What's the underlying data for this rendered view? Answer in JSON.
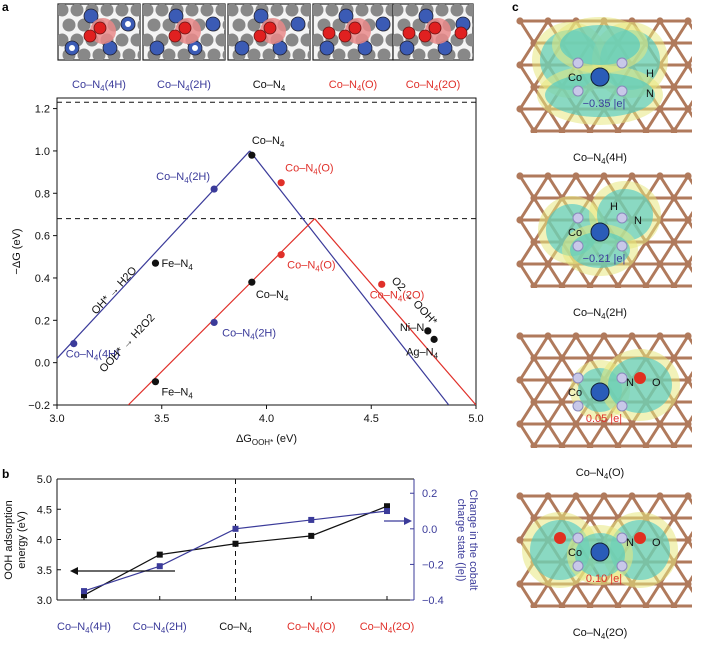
{
  "panel_labels": {
    "a": "a",
    "b": "b",
    "c": "c"
  },
  "colors": {
    "blue": "#3b3b9a",
    "red": "#e0302a",
    "black": "#111111",
    "atom_blue": "#3b5bb5",
    "atom_red": "#e02020",
    "carbon": "#b07a5c",
    "cyan": "#44c8c8",
    "yellow": "#e8e880"
  },
  "structures": [
    {
      "label": "Co–N",
      "sub": "4",
      "suffix": "(4H)",
      "color": "#3b3b9a"
    },
    {
      "label": "Co–N",
      "sub": "4",
      "suffix": "(2H)",
      "color": "#3b3b9a"
    },
    {
      "label": "Co–N",
      "sub": "4",
      "suffix": "",
      "color": "#111111"
    },
    {
      "label": "Co–N",
      "sub": "4",
      "suffix": "(O)",
      "color": "#e0302a"
    },
    {
      "label": "Co–N",
      "sub": "4",
      "suffix": "(2O)",
      "color": "#e0302a"
    }
  ],
  "chart_data": [
    {
      "type": "scatter",
      "panel": "a",
      "xlabel": "ΔG",
      "xlabel_sub": "OOH*",
      "xlabel_unit": "(eV)",
      "ylabel": "−ΔG (eV)",
      "xlim": [
        3.0,
        5.0
      ],
      "ylim": [
        -0.2,
        1.25
      ],
      "xticks": [
        "3.0",
        "3.5",
        "4.0",
        "4.5",
        "5.0"
      ],
      "xtick_values": [
        3.0,
        3.5,
        4.0,
        4.5,
        5.0
      ],
      "yticks": [
        "−0.2",
        "0.0",
        "0.2",
        "0.4",
        "0.6",
        "0.8",
        "1.0",
        "1.2"
      ],
      "ytick_values": [
        -0.2,
        0.0,
        0.2,
        0.4,
        0.6,
        0.8,
        1.0,
        1.2
      ],
      "dashed_lines": [
        1.23,
        0.68
      ],
      "volcano_lines": [
        {
          "name": "4e-left",
          "from": [
            3.0,
            0.02
          ],
          "to": [
            3.92,
            1.0
          ],
          "color": "#3b3b9a"
        },
        {
          "name": "4e-right",
          "from": [
            3.92,
            1.0
          ],
          "to": [
            4.87,
            -0.2
          ],
          "color": "#3b3b9a"
        },
        {
          "name": "2e-left",
          "from": [
            3.34,
            -0.2
          ],
          "to": [
            4.23,
            0.68
          ],
          "color": "#e0302a"
        },
        {
          "name": "2e-right",
          "from": [
            4.23,
            0.68
          ],
          "to": [
            5.0,
            -0.2
          ],
          "color": "#e0302a"
        }
      ],
      "points": [
        {
          "x": 3.08,
          "y": 0.09,
          "label": "Co–N",
          "sub": "4",
          "suffix": "(4H)",
          "color": "#3b3b9a"
        },
        {
          "x": 3.75,
          "y": 0.82,
          "label": "Co–N",
          "sub": "4",
          "suffix": "(2H)",
          "color": "#3b3b9a"
        },
        {
          "x": 3.75,
          "y": 0.19,
          "label": "Co–N",
          "sub": "4",
          "suffix": "(2H)",
          "color": "#3b3b9a"
        },
        {
          "x": 3.93,
          "y": 0.98,
          "label": "Co–N",
          "sub": "4",
          "suffix": "",
          "color": "#111111"
        },
        {
          "x": 3.93,
          "y": 0.38,
          "label": "Co–N",
          "sub": "4",
          "suffix": "",
          "color": "#111111"
        },
        {
          "x": 4.07,
          "y": 0.85,
          "label": "Co–N",
          "sub": "4",
          "suffix": "(O)",
          "color": "#e0302a"
        },
        {
          "x": 4.07,
          "y": 0.51,
          "label": "Co–N",
          "sub": "4",
          "suffix": "(O)",
          "color": "#e0302a"
        },
        {
          "x": 4.55,
          "y": 0.37,
          "label": "Co–N",
          "sub": "4",
          "suffix": "(2O)",
          "color": "#e0302a"
        },
        {
          "x": 3.47,
          "y": 0.47,
          "label": "Fe–N",
          "sub": "4",
          "suffix": "",
          "color": "#111111"
        },
        {
          "x": 3.47,
          "y": -0.09,
          "label": "Fe–N",
          "sub": "4",
          "suffix": "",
          "color": "#111111"
        },
        {
          "x": 4.77,
          "y": 0.15,
          "label": "Ni–N",
          "sub": "4",
          "suffix": "",
          "color": "#111111"
        },
        {
          "x": 4.8,
          "y": 0.11,
          "label": "Ag–N",
          "sub": "4",
          "suffix": "",
          "color": "#111111"
        }
      ],
      "annotations": [
        {
          "text": "OH* → H2O"
        },
        {
          "text": "OOH* → H2O2"
        },
        {
          "text": "O2 → OOH*"
        }
      ]
    },
    {
      "type": "line",
      "panel": "b",
      "categories": [
        "Co–N4(4H)",
        "Co–N4(2H)",
        "Co–N4",
        "Co–N4(O)",
        "Co–N4(2O)"
      ],
      "category_colors": [
        "#3b3b9a",
        "#3b3b9a",
        "#111111",
        "#e0302a",
        "#e0302a"
      ],
      "series": [
        {
          "name": "OOH adsorption energy",
          "axis": "left",
          "values": [
            3.08,
            3.75,
            3.93,
            4.06,
            4.55
          ],
          "color": "#111111",
          "marker": "square"
        },
        {
          "name": "Change in the cobalt charge state",
          "axis": "right",
          "values": [
            -0.35,
            -0.21,
            0.0,
            0.05,
            0.1
          ],
          "color": "#3b3b9a",
          "marker": "square"
        }
      ],
      "ylabel_left": "OOH adsorption energy (eV)",
      "ylabel_right": "Change in the cobalt charge state (|e|)",
      "ylim_left": [
        3.0,
        5.0
      ],
      "ylim_right": [
        -0.4,
        0.28
      ],
      "yticks_left": [
        "3.0",
        "3.5",
        "4.0",
        "4.5",
        "5.0"
      ],
      "ytick_values_left": [
        3.0,
        3.5,
        4.0,
        4.5,
        5.0
      ],
      "yticks_right": [
        "−0.4",
        "−0.2",
        "0.0",
        "0.2"
      ],
      "ytick_values_right": [
        -0.4,
        -0.2,
        0.0,
        0.2
      ],
      "vline_at_category": 2
    }
  ],
  "panel_c": [
    {
      "label": "Co–N",
      "sub": "4",
      "suffix": "(4H)",
      "charge": "−0.35 |e|",
      "charge_color": "#3b3b9a",
      "atom_labels": [
        "Co",
        "H",
        "N"
      ]
    },
    {
      "label": "Co–N",
      "sub": "4",
      "suffix": "(2H)",
      "charge": "−0.21 |e|",
      "charge_color": "#3b3b9a",
      "atom_labels": [
        "Co",
        "H",
        "N"
      ]
    },
    {
      "label": "Co–N",
      "sub": "4",
      "suffix": "(O)",
      "charge": "0.05 |e|",
      "charge_color": "#e0302a",
      "atom_labels": [
        "Co",
        "N",
        "O"
      ]
    },
    {
      "label": "Co–N",
      "sub": "4",
      "suffix": "(2O)",
      "charge": "0.10 |e|",
      "charge_color": "#e0302a",
      "atom_labels": [
        "Co",
        "N",
        "O"
      ]
    }
  ]
}
